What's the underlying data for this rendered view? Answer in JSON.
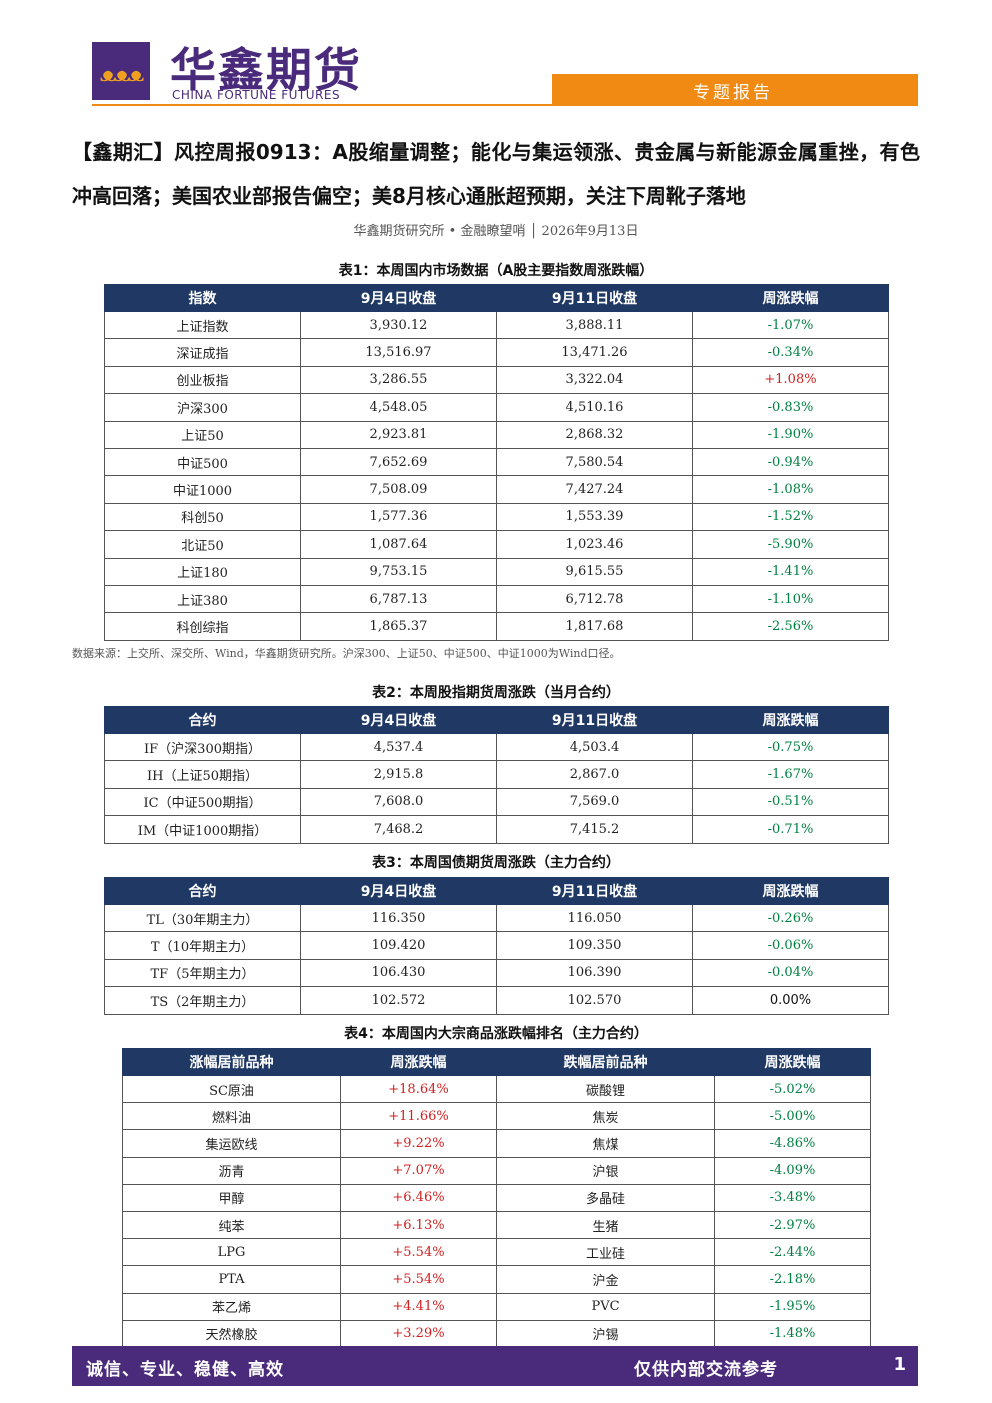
{
  "header": {
    "brand_cn": "华鑫期货",
    "brand_en": "CHINA FORTUNE FUTURES",
    "report_type": "专题报告"
  },
  "title": "【鑫期汇】风控周报0913：A股缩量调整；能化与集运领涨、贵金属与新能源金属重挫，有色冲高回落；美国农业部报告偏空；美8月核心通胀超预期，关注下周靴子落地",
  "byline": "华鑫期货研究所 • 金融瞭望哨 │ 2026年9月13日",
  "table1": {
    "caption": "表1：本周国内市场数据（A股主要指数周涨跌幅）",
    "headers": [
      "指数",
      "9月4日收盘",
      "9月11日收盘",
      "周涨跌幅"
    ],
    "rows": [
      [
        "上证指数",
        "3,930.12",
        "3,888.11",
        "-1.07%"
      ],
      [
        "深证成指",
        "13,516.97",
        "13,471.26",
        "-0.34%"
      ],
      [
        "创业板指",
        "3,286.55",
        "3,322.04",
        "+1.08%"
      ],
      [
        "沪深300",
        "4,548.05",
        "4,510.16",
        "-0.83%"
      ],
      [
        "上证50",
        "2,923.81",
        "2,868.32",
        "-1.90%"
      ],
      [
        "中证500",
        "7,652.69",
        "7,580.54",
        "-0.94%"
      ],
      [
        "中证1000",
        "7,508.09",
        "7,427.24",
        "-1.08%"
      ],
      [
        "科创50",
        "1,577.36",
        "1,553.39",
        "-1.52%"
      ],
      [
        "北证50",
        "1,087.64",
        "1,023.46",
        "-5.90%"
      ],
      [
        "上证180",
        "9,753.15",
        "9,615.55",
        "-1.41%"
      ],
      [
        "上证380",
        "6,787.13",
        "6,712.78",
        "-1.10%"
      ],
      [
        "科创综指",
        "1,865.37",
        "1,817.68",
        "-2.56%"
      ]
    ],
    "note": "数据来源：上交所、深交所、Wind，华鑫期货研究所。沪深300、上证50、中证500、中证1000为Wind口径。"
  },
  "table2": {
    "caption": "表2：本周股指期货周涨跌（当月合约）",
    "headers": [
      "合约",
      "9月4日收盘",
      "9月11日收盘",
      "周涨跌幅"
    ],
    "rows": [
      [
        "IF（沪深300期指）",
        "4,537.4",
        "4,503.4",
        "-0.75%"
      ],
      [
        "IH（上证50期指）",
        "2,915.8",
        "2,867.0",
        "-1.67%"
      ],
      [
        "IC（中证500期指）",
        "7,608.0",
        "7,569.0",
        "-0.51%"
      ],
      [
        "IM（中证1000期指）",
        "7,468.2",
        "7,415.2",
        "-0.71%"
      ]
    ]
  },
  "table3": {
    "caption": "表3：本周国债期货周涨跌（主力合约）",
    "headers": [
      "合约",
      "9月4日收盘",
      "9月11日收盘",
      "周涨跌幅"
    ],
    "rows": [
      [
        "TL（30年期主力）",
        "116.350",
        "116.050",
        "-0.26%"
      ],
      [
        "T（10年期主力）",
        "109.420",
        "109.350",
        "-0.06%"
      ],
      [
        "TF（5年期主力）",
        "106.430",
        "106.390",
        "-0.04%"
      ],
      [
        "TS（2年期主力）",
        "102.572",
        "102.570",
        "0.00%"
      ]
    ]
  },
  "table4": {
    "caption": "表4：本周国内大宗商品涨跌幅排名（主力合约）",
    "headers": [
      "涨幅居前品种",
      "周涨跌幅",
      "跌幅居前品种",
      "周涨跌幅"
    ],
    "rows": [
      [
        "SC原油",
        "+18.64%",
        "碳酸锂",
        "-5.02%"
      ],
      [
        "燃料油",
        "+11.66%",
        "焦炭",
        "-5.00%"
      ],
      [
        "集运欧线",
        "+9.22%",
        "焦煤",
        "-4.86%"
      ],
      [
        "沥青",
        "+7.07%",
        "沪银",
        "-4.09%"
      ],
      [
        "甲醇",
        "+6.46%",
        "多晶硅",
        "-3.48%"
      ],
      [
        "纯苯",
        "+6.13%",
        "生猪",
        "-2.97%"
      ],
      [
        "LPG",
        "+5.54%",
        "工业硅",
        "-2.44%"
      ],
      [
        "PTA",
        "+5.54%",
        "沪金",
        "-2.18%"
      ],
      [
        "苯乙烯",
        "+4.41%",
        "PVC",
        "-1.95%"
      ],
      [
        "天然橡胶",
        "+3.29%",
        "沪锡",
        "-1.48%"
      ]
    ]
  },
  "footer": {
    "slogan": "诚信、专业、稳健、高效",
    "internal": "仅供内部交流参考",
    "page": "1"
  },
  "colors": {
    "header_bg": "#1f3864",
    "brand_purple": "#4a2a7a",
    "accent_orange": "#f08a12",
    "up_red": "#d02020",
    "down_green": "#008040"
  }
}
